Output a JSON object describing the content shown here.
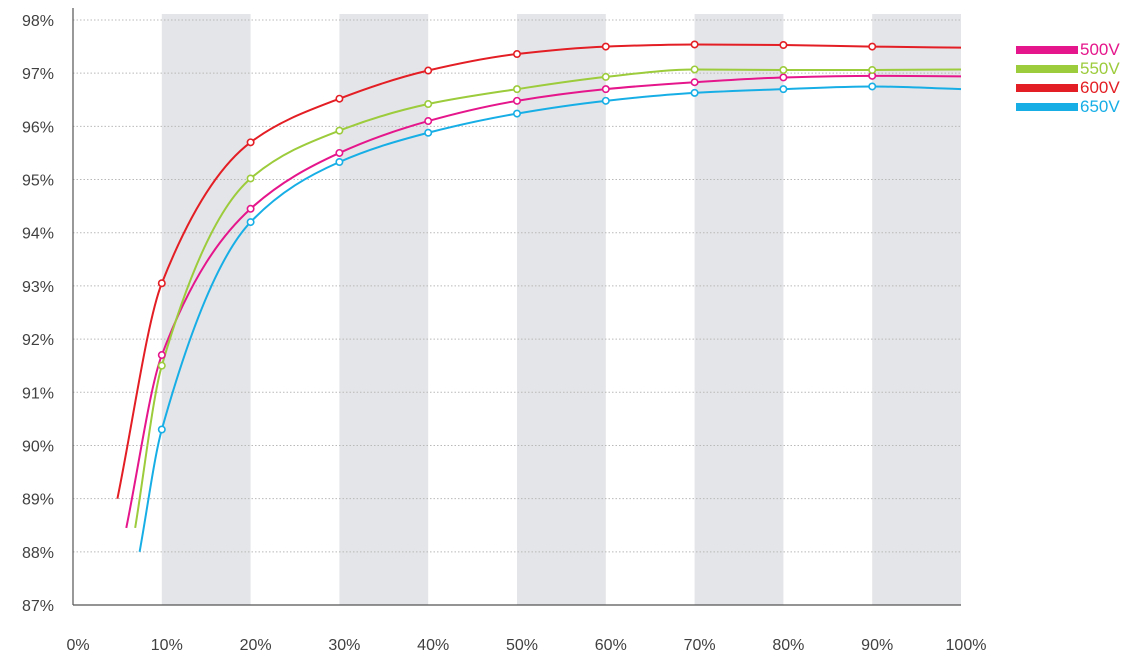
{
  "chart_data": {
    "type": "line",
    "title": "",
    "xlabel": "",
    "ylabel": "",
    "xlim": [
      0,
      100
    ],
    "ylim": [
      87,
      98
    ],
    "x_ticks": [
      "0%",
      "10%",
      "20%",
      "30%",
      "40%",
      "50%",
      "60%",
      "70%",
      "80%",
      "90%",
      "100%"
    ],
    "y_ticks": [
      "87%",
      "88%",
      "89%",
      "90%",
      "91%",
      "92%",
      "93%",
      "94%",
      "95%",
      "96%",
      "97%",
      "98%"
    ],
    "background_bands_x": [
      [
        10,
        20
      ],
      [
        30,
        40
      ],
      [
        50,
        60
      ],
      [
        70,
        80
      ],
      [
        90,
        100
      ]
    ],
    "grid": "horizontal dotted",
    "legend_position": "top-right",
    "series": [
      {
        "name": "500V",
        "color": "#e5168b",
        "x": [
          6,
          10,
          20,
          30,
          40,
          50,
          60,
          70,
          80,
          90,
          100
        ],
        "y": [
          88.45,
          91.7,
          94.45,
          95.5,
          96.1,
          96.48,
          96.7,
          96.83,
          96.92,
          96.95,
          96.94
        ],
        "markers": [
          10,
          20,
          30,
          40,
          50,
          60,
          70,
          80,
          90
        ]
      },
      {
        "name": "550V",
        "color": "#9ccb3b",
        "x": [
          7,
          10,
          20,
          30,
          40,
          50,
          60,
          70,
          80,
          90,
          100
        ],
        "y": [
          88.45,
          91.5,
          95.02,
          95.92,
          96.42,
          96.7,
          96.93,
          97.07,
          97.06,
          97.06,
          97.07
        ],
        "markers": [
          10,
          20,
          30,
          40,
          50,
          60,
          70,
          80,
          90
        ]
      },
      {
        "name": "600V",
        "color": "#e31e24",
        "x": [
          5,
          10,
          20,
          30,
          40,
          50,
          60,
          70,
          80,
          90,
          100
        ],
        "y": [
          89.0,
          93.05,
          95.7,
          96.52,
          97.05,
          97.36,
          97.5,
          97.54,
          97.53,
          97.5,
          97.48
        ],
        "markers": [
          10,
          20,
          30,
          40,
          50,
          60,
          70,
          80,
          90
        ]
      },
      {
        "name": "650V",
        "color": "#17aee6",
        "x": [
          7.5,
          10,
          20,
          30,
          40,
          50,
          60,
          70,
          80,
          90,
          100
        ],
        "y": [
          88.0,
          90.3,
          94.2,
          95.33,
          95.88,
          96.24,
          96.48,
          96.63,
          96.7,
          96.75,
          96.7
        ],
        "markers": [
          10,
          20,
          30,
          40,
          50,
          60,
          70,
          80,
          90
        ]
      }
    ]
  }
}
